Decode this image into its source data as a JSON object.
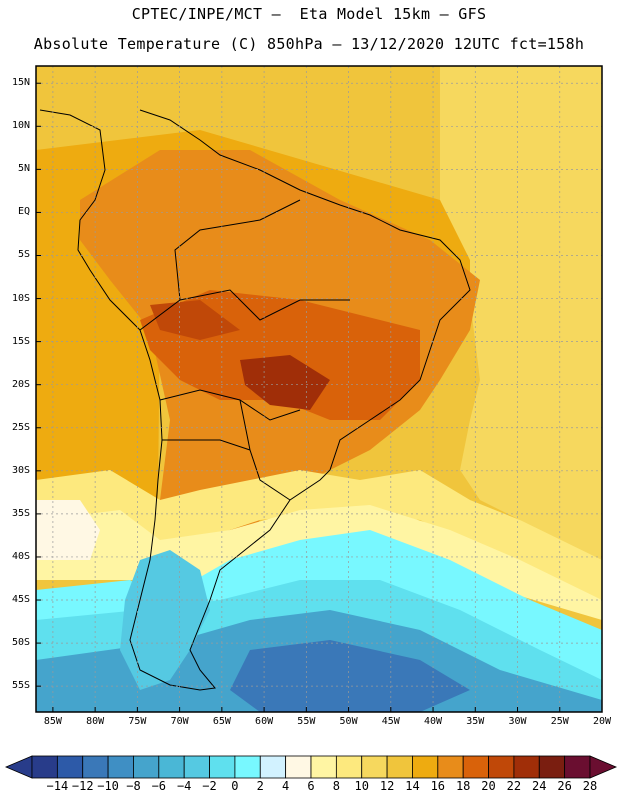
{
  "header": {
    "line1": "CPTEC/INPE/MCT –  Eta Model 15km – GFS",
    "line2": "Absolute Temperature (C) 850hPa – 13/12/2020 12UTC fct=158h"
  },
  "map": {
    "lat_labels": [
      "15N",
      "10N",
      "5N",
      "EQ",
      "5S",
      "10S",
      "15S",
      "20S",
      "25S",
      "30S",
      "35S",
      "40S",
      "45S",
      "50S",
      "55S"
    ],
    "lon_labels": [
      "85W",
      "80W",
      "75W",
      "70W",
      "65W",
      "60W",
      "55W",
      "50W",
      "45W",
      "40W",
      "35W",
      "30W",
      "25W",
      "20W"
    ]
  },
  "colorbar": {
    "labels": [
      "-14",
      "-12",
      "-10",
      "-8",
      "-6",
      "-4",
      "-2",
      "0",
      "2",
      "4",
      "6",
      "8",
      "10",
      "12",
      "14",
      "16",
      "18",
      "20",
      "22",
      "24",
      "26",
      "28"
    ],
    "colors": [
      "#283c8a",
      "#2d5aa8",
      "#3a78b8",
      "#3f8fc4",
      "#45a4cc",
      "#4ab7d6",
      "#55c9e2",
      "#5fe0ee",
      "#78f8ff",
      "#d2f2ff",
      "#fff8e4",
      "#fff5a3",
      "#fde97e",
      "#f6d85e",
      "#f0c53c",
      "#eeab10",
      "#e88c1a",
      "#d9620a",
      "#c04808",
      "#a02e08",
      "#7a1e10",
      "#6a0e30"
    ]
  }
}
